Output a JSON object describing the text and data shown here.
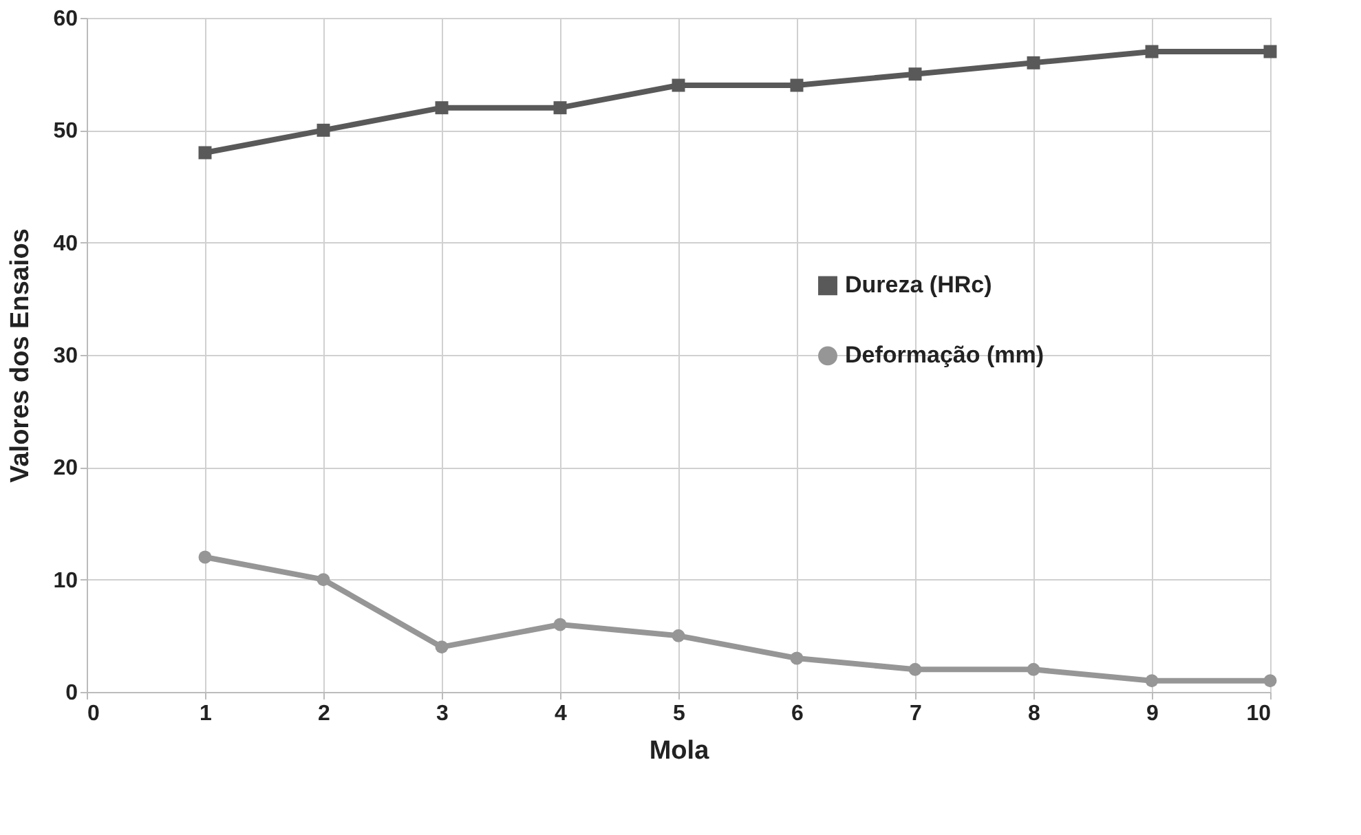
{
  "chart_data": {
    "type": "line",
    "xlabel": "Mola",
    "ylabel": "Valores dos Ensaios",
    "x": [
      1,
      2,
      3,
      4,
      5,
      6,
      7,
      8,
      9,
      10
    ],
    "series": [
      {
        "name": "Dureza (HRc)",
        "color": "#595959",
        "marker": "square",
        "values": [
          48,
          50,
          52,
          52,
          54,
          54,
          55,
          56,
          57,
          57
        ]
      },
      {
        "name": "Deformação (mm)",
        "color": "#969696",
        "marker": "circle",
        "values": [
          12,
          10,
          4,
          6,
          5,
          3,
          2,
          2,
          1,
          1
        ]
      }
    ],
    "xlim": [
      0,
      10
    ],
    "xticks": [
      0,
      1,
      2,
      3,
      4,
      5,
      6,
      7,
      8,
      9,
      10
    ],
    "ylim": [
      0,
      60
    ],
    "yticks": [
      0,
      10,
      20,
      30,
      40,
      50,
      60
    ],
    "grid": true,
    "legend": "right",
    "line_style": "solid"
  }
}
